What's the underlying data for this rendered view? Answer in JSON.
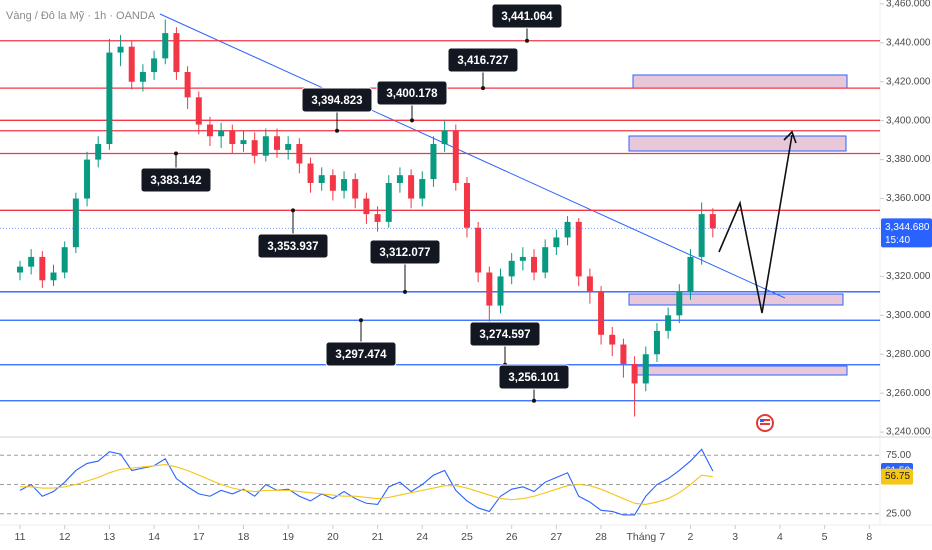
{
  "chart_data": [
    {
      "type": "candlestick",
      "title": "Vàng / Đô la Mỹ · 1h · OANDA",
      "x": [
        0,
        0.25,
        0.5,
        0.75,
        1,
        1.25,
        1.5,
        1.75,
        2,
        2.25,
        2.5,
        2.75,
        3,
        3.25,
        3.5,
        3.75,
        4,
        4.25,
        4.5,
        4.75,
        5,
        5.25,
        5.5,
        5.75,
        6,
        6.25,
        6.5,
        6.75,
        7,
        7.25,
        7.5,
        7.75,
        8,
        8.25,
        8.5,
        8.75,
        9,
        9.25,
        9.5,
        9.75,
        10,
        10.25,
        10.5,
        10.75,
        11,
        11.25,
        11.5,
        11.75,
        12,
        12.25,
        12.5,
        12.75,
        13,
        13.25,
        13.5,
        13.75,
        14,
        14.25,
        14.5,
        14.75,
        15,
        15.25,
        15.5
      ],
      "open": [
        3322,
        3325,
        3330,
        3318,
        3322,
        3335,
        3360,
        3380,
        3388,
        3435,
        3438,
        3420,
        3425,
        3432,
        3445,
        3425,
        3412,
        3398,
        3392,
        3395,
        3388,
        3390,
        3382,
        3392,
        3385,
        3388,
        3378,
        3368,
        3372,
        3364,
        3370,
        3360,
        3352,
        3348,
        3368,
        3372,
        3360,
        3370,
        3388,
        3395,
        3368,
        3345,
        3322,
        3305,
        3320,
        3328,
        3330,
        3322,
        3335,
        3340,
        3348,
        3320,
        3312,
        3290,
        3285,
        3275,
        3265,
        3280,
        3292,
        3300,
        3312,
        3330,
        3352
      ],
      "high": [
        3328,
        3334,
        3333,
        3326,
        3338,
        3363,
        3384,
        3392,
        3442,
        3444,
        3441,
        3429,
        3436,
        3452,
        3448,
        3428,
        3415,
        3402,
        3399,
        3398,
        3395,
        3394,
        3396,
        3396,
        3392,
        3391,
        3381,
        3376,
        3375,
        3374,
        3373,
        3363,
        3356,
        3372,
        3376,
        3375,
        3374,
        3392,
        3400,
        3398,
        3371,
        3348,
        3325,
        3324,
        3332,
        3335,
        3334,
        3339,
        3344,
        3351,
        3350,
        3324,
        3315,
        3294,
        3288,
        3279,
        3284,
        3296,
        3304,
        3316,
        3334,
        3358,
        3355
      ],
      "low": [
        3318,
        3321,
        3314,
        3315,
        3319,
        3332,
        3356,
        3376,
        3385,
        3428,
        3416,
        3415,
        3421,
        3429,
        3421,
        3406,
        3393,
        3387,
        3386,
        3383,
        3384,
        3378,
        3379,
        3381,
        3380,
        3373,
        3363,
        3364,
        3359,
        3360,
        3355,
        3347,
        3343,
        3345,
        3363,
        3355,
        3356,
        3366,
        3384,
        3364,
        3340,
        3317,
        3296,
        3301,
        3316,
        3323,
        3318,
        3319,
        3331,
        3336,
        3315,
        3306,
        3285,
        3279,
        3268,
        3248,
        3261,
        3276,
        3288,
        3296,
        3308,
        3326,
        3340
      ],
      "close": [
        3325,
        3330,
        3318,
        3322,
        3335,
        3360,
        3380,
        3388,
        3435,
        3438,
        3420,
        3425,
        3432,
        3445,
        3425,
        3412,
        3398,
        3392,
        3395,
        3388,
        3390,
        3382,
        3392,
        3385,
        3388,
        3378,
        3368,
        3372,
        3364,
        3370,
        3360,
        3352,
        3348,
        3368,
        3372,
        3360,
        3370,
        3388,
        3395,
        3368,
        3345,
        3322,
        3305,
        3320,
        3328,
        3330,
        3322,
        3335,
        3340,
        3348,
        3320,
        3312,
        3290,
        3285,
        3275,
        3265,
        3280,
        3292,
        3300,
        3312,
        3330,
        3352,
        3344.68
      ],
      "up_color": "#089981",
      "down_color": "#f23645",
      "xlim": [
        -0.447,
        19.24
      ],
      "xticks": [
        {
          "value": 0,
          "label": "11"
        },
        {
          "value": 1,
          "label": "12"
        },
        {
          "value": 2,
          "label": "13"
        },
        {
          "value": 3,
          "label": "14"
        },
        {
          "value": 4,
          "label": "17"
        },
        {
          "value": 5,
          "label": "18"
        },
        {
          "value": 6,
          "label": "19"
        },
        {
          "value": 7,
          "label": "20"
        },
        {
          "value": 8,
          "label": "21"
        },
        {
          "value": 9,
          "label": "24"
        },
        {
          "value": 10,
          "label": "25"
        },
        {
          "value": 11,
          "label": "26"
        },
        {
          "value": 12,
          "label": "27"
        },
        {
          "value": 13,
          "label": "28"
        },
        {
          "value": 14,
          "label": "Tháng 7"
        },
        {
          "value": 15,
          "label": "2"
        },
        {
          "value": 16,
          "label": "3"
        },
        {
          "value": 17,
          "label": "4"
        },
        {
          "value": 18,
          "label": "5"
        },
        {
          "value": 19,
          "label": "8"
        }
      ],
      "ylim": [
        3238,
        3462
      ],
      "yticks": [
        {
          "value": 3460,
          "label": "3,460.000"
        },
        {
          "value": 3440,
          "label": "3,440.000"
        },
        {
          "value": 3420,
          "label": "3,420.000"
        },
        {
          "value": 3400,
          "label": "3,400.000"
        },
        {
          "value": 3380,
          "label": "3,380.000"
        },
        {
          "value": 3360,
          "label": "3,360.000"
        },
        {
          "value": 3320,
          "label": "3,320.000"
        },
        {
          "value": 3300,
          "label": "3,300.000"
        },
        {
          "value": 3280,
          "label": "3,280.000"
        },
        {
          "value": 3260,
          "label": "3,260.000"
        },
        {
          "value": 3240,
          "label": "3,240.000"
        }
      ],
      "levels": [
        {
          "value": 3441.064,
          "label": "3,441.064",
          "color": "#f23645"
        },
        {
          "value": 3416.727,
          "label": "3,416.727",
          "color": "#f23645"
        },
        {
          "value": 3394.823,
          "label": "3,394.823",
          "color": "#f23645"
        },
        {
          "value": 3400.178,
          "label": "3,400.178",
          "color": "#f23645"
        },
        {
          "value": 3383.142,
          "label": "3,383.142",
          "color": "#f23645"
        },
        {
          "value": 3353.937,
          "label": "3,353.937",
          "color": "#f23645"
        },
        {
          "value": 3312.077,
          "label": "3,312.077",
          "color": "#2962ff"
        },
        {
          "value": 3297.474,
          "label": "3,297.474",
          "color": "#2962ff"
        },
        {
          "value": 3274.597,
          "label": "3,274.597",
          "color": "#2962ff"
        },
        {
          "value": 3256.101,
          "label": "3,256.101",
          "color": "#2962ff"
        }
      ],
      "last_price": {
        "value": 3344.68,
        "label": "3,344.680"
      },
      "countdown": "15:40"
    },
    {
      "type": "line",
      "series": [
        {
          "color": "#2962ff",
          "values": [
            45,
            50,
            40,
            44,
            52,
            62,
            68,
            70,
            78,
            76,
            62,
            64,
            66,
            72,
            55,
            48,
            42,
            40,
            45,
            42,
            46,
            40,
            50,
            45,
            46,
            40,
            36,
            42,
            38,
            44,
            38,
            34,
            33,
            48,
            52,
            44,
            50,
            58,
            62,
            45,
            36,
            30,
            27,
            40,
            46,
            48,
            44,
            52,
            56,
            60,
            40,
            35,
            28,
            27,
            24,
            24,
            40,
            50,
            55,
            62,
            70,
            80,
            61.5
          ],
          "tag": {
            "value": 61.5,
            "label": "61.50"
          }
        },
        {
          "color": "#f5c518",
          "values": [
            48,
            48,
            47,
            47,
            48,
            50,
            53,
            56,
            60,
            63,
            64,
            65,
            66,
            67,
            65,
            62,
            58,
            54,
            50,
            47,
            45,
            44,
            45,
            45,
            45,
            44,
            43,
            42,
            41,
            40,
            40,
            39,
            38,
            39,
            41,
            43,
            45,
            47,
            49,
            49,
            47,
            44,
            41,
            38,
            37,
            38,
            40,
            43,
            46,
            49,
            50,
            49,
            46,
            42,
            38,
            34,
            33,
            35,
            38,
            43,
            50,
            58,
            56.75
          ],
          "tag": {
            "value": 56.75,
            "label": "56.75"
          }
        }
      ],
      "ylim": [
        18,
        88
      ],
      "yticks": [
        {
          "value": 75,
          "label": "75.00"
        },
        {
          "value": 25,
          "label": "25.00"
        }
      ],
      "hlines": [
        75,
        50,
        25
      ]
    }
  ]
}
